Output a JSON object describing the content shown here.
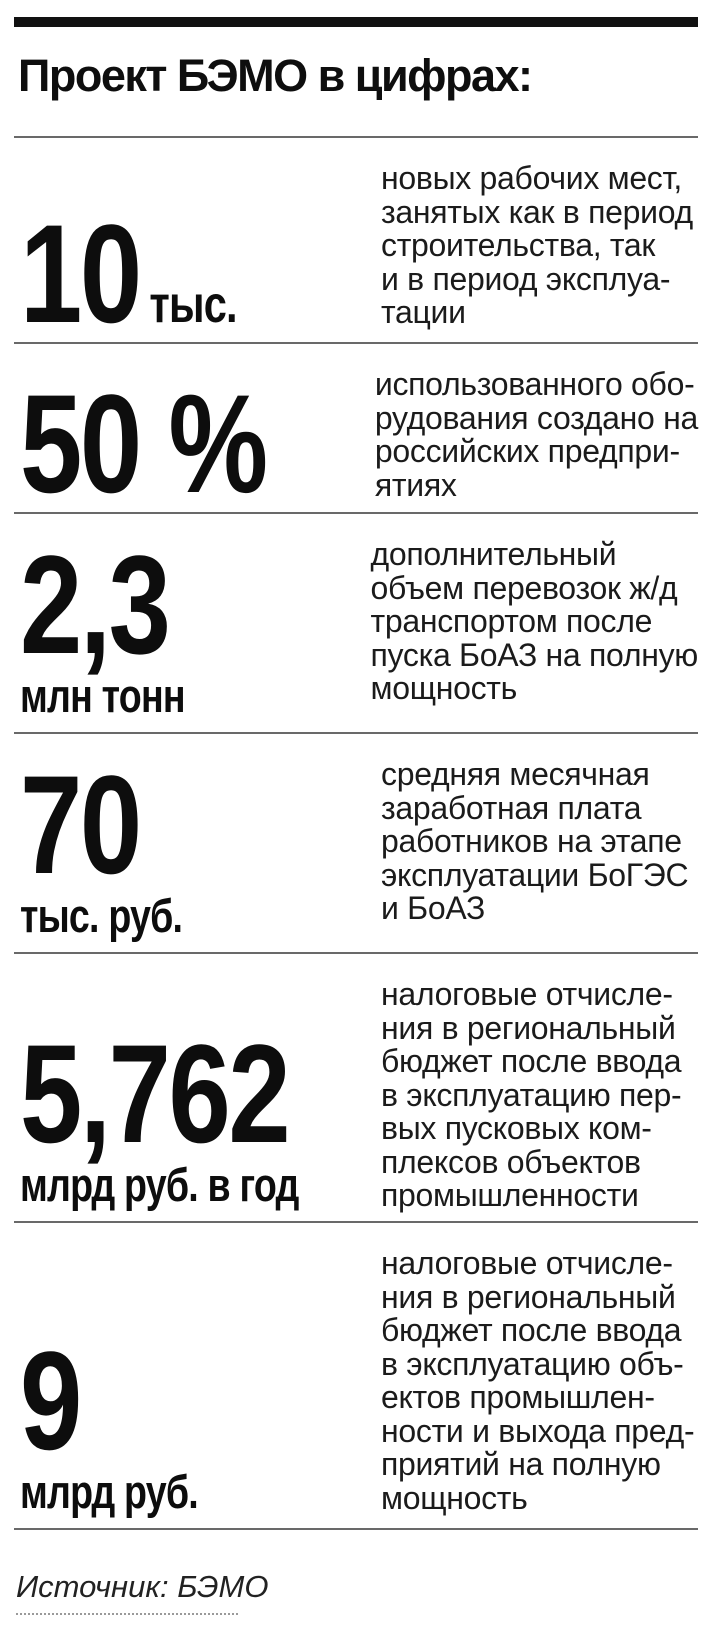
{
  "title": "Проект БЭМО в цифрах:",
  "source": "Источник: БЭМО",
  "colors": {
    "top_bar": "#111111",
    "rule": "#696969",
    "text": "#1a1a1a"
  },
  "stats": [
    {
      "value": "10",
      "suffix": "тыс.",
      "description": "новых рабочих мест,\nзанятых как в период\nстроительства, так\nи в период эксплуа-\nтации"
    },
    {
      "value": "50 %",
      "description": "использованного обо-\nрудования создано на\nроссийских предпри-\nятиях"
    },
    {
      "value": "2,3",
      "unit": "млн тонн",
      "description": "дополнительный\nобъем перевозок ж/д\nтранспортом после\nпуска БоАЗ на полную\nмощность"
    },
    {
      "value": "70",
      "unit": "тыс. руб.",
      "description": "средняя месячная\nзаработная плата\nработников на этапе\nэксплуатации БоГЭС\nи БоАЗ"
    },
    {
      "value": "5,762",
      "unit": "млрд руб. в год",
      "description": "налоговые отчисле-\nния в региональный\nбюджет после ввода\nв эксплуатацию пер-\nвых пусковых ком-\nплексов объектов\nпромышленности"
    },
    {
      "value": "9",
      "unit": "млрд руб.",
      "description": "налоговые отчисле-\nния в региональный\nбюджет после ввода\nв эксплуатацию объ-\nектов промышлен-\nности и выхода пред-\nприятий на полную\nмощность"
    }
  ],
  "chart_data": {
    "type": "table",
    "title": "Проект БЭМО в цифрах:",
    "source": "Источник: БЭМО",
    "rows": [
      {
        "value": "10 тыс.",
        "value_numeric": 10000,
        "description": "новых рабочих мест, занятых как в период строительства, так и в период эксплуатации"
      },
      {
        "value": "50 %",
        "value_numeric": 50,
        "description": "использованного оборудования создано на российских предприятиях"
      },
      {
        "value": "2,3 млн тонн",
        "value_numeric": 2.3,
        "description": "дополнительный объем перевозок ж/д транспортом после пуска БоАЗ на полную мощность"
      },
      {
        "value": "70 тыс. руб.",
        "value_numeric": 70000,
        "description": "средняя месячная заработная плата работников на этапе эксплуатации БоГЭС и БоАЗ"
      },
      {
        "value": "5,762 млрд руб. в год",
        "value_numeric": 5.762,
        "description": "налоговые отчисления в региональный бюджет после ввода в эксплуатацию первых пусковых комплексов объектов промышленности"
      },
      {
        "value": "9 млрд руб.",
        "value_numeric": 9,
        "description": "налоговые отчисления в региональный бюджет после ввода в эксплуатацию объектов промышленности и выхода предприятий на полную мощность"
      }
    ]
  }
}
